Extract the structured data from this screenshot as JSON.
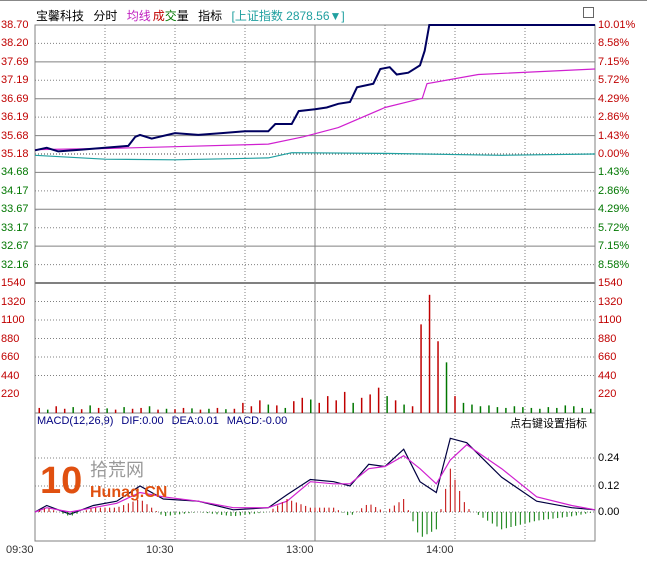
{
  "header": {
    "stock_name": "宝馨科技",
    "tab_fenshi": "分时",
    "tab_junxian": "均线",
    "tab_cheng": "成",
    "tab_jiao": "交",
    "tab_liang": "量",
    "tab_zhibiao": "指标",
    "index_info": "[上证指数 2878.56▼]"
  },
  "colors": {
    "price": "#000060",
    "avg": "#d020d0",
    "index": "#20a0a0",
    "up": "#c00000",
    "down": "#007700",
    "grid": "#808080"
  },
  "price_axis": {
    "left": [
      "38.70",
      "38.20",
      "37.69",
      "37.19",
      "36.69",
      "36.19",
      "35.68",
      "35.18",
      "34.68",
      "34.17",
      "33.67",
      "33.17",
      "32.67",
      "32.16"
    ],
    "right": [
      "10.01%",
      "8.58%",
      "7.15%",
      "5.72%",
      "4.29%",
      "2.86%",
      "1.43%",
      "0.00%",
      "1.43%",
      "2.86%",
      "4.29%",
      "5.72%",
      "7.15%",
      "8.58%"
    ],
    "prev_close": 35.18
  },
  "volume_axis": {
    "left": [
      "1540",
      "1320",
      "1100",
      "880",
      "660",
      "440",
      "220"
    ],
    "right": [
      "1540",
      "1320",
      "1100",
      "880",
      "660",
      "440",
      "220"
    ]
  },
  "macd": {
    "label": "MACD(12,26,9)",
    "dif": "DIF:0.00",
    "dea": "DEA:0.01",
    "macd": "MACD:-0.00",
    "hint": "点右键设置指标",
    "axis": [
      "0.24",
      "0.12",
      "0.00"
    ]
  },
  "time_axis": [
    "09:30",
    "10:30",
    "13:00",
    "14:00"
  ],
  "watermark": {
    "text1": "拾荒网",
    "text2": "Hunag.CN",
    "num": "10"
  },
  "chart_data": {
    "type": "line",
    "price": [
      [
        0,
        35.28
      ],
      [
        5,
        35.35
      ],
      [
        10,
        35.25
      ],
      [
        20,
        35.3
      ],
      [
        30,
        35.35
      ],
      [
        40,
        35.4
      ],
      [
        43,
        35.65
      ],
      [
        45,
        35.7
      ],
      [
        50,
        35.6
      ],
      [
        60,
        35.75
      ],
      [
        70,
        35.7
      ],
      [
        80,
        35.75
      ],
      [
        90,
        35.8
      ],
      [
        100,
        35.8
      ],
      [
        103,
        36.0
      ],
      [
        110,
        36.0
      ],
      [
        113,
        36.35
      ],
      [
        120,
        36.4
      ],
      [
        125,
        36.45
      ],
      [
        130,
        36.55
      ],
      [
        135,
        36.6
      ],
      [
        138,
        37.0
      ],
      [
        145,
        37.1
      ],
      [
        148,
        37.5
      ],
      [
        152,
        37.55
      ],
      [
        155,
        37.35
      ],
      [
        160,
        37.4
      ],
      [
        165,
        37.6
      ],
      [
        167,
        38.0
      ],
      [
        169,
        38.7
      ],
      [
        240,
        38.7
      ]
    ],
    "avg": [
      [
        0,
        35.3
      ],
      [
        30,
        35.33
      ],
      [
        60,
        35.38
      ],
      [
        100,
        35.45
      ],
      [
        115,
        35.65
      ],
      [
        130,
        35.9
      ],
      [
        150,
        36.45
      ],
      [
        166,
        36.7
      ],
      [
        168,
        37.1
      ],
      [
        190,
        37.35
      ],
      [
        240,
        37.5
      ]
    ],
    "index_pct": [
      [
        0,
        -0.1
      ],
      [
        30,
        -0.4
      ],
      [
        60,
        -0.45
      ],
      [
        100,
        -0.3
      ],
      [
        110,
        0.1
      ],
      [
        150,
        0.05
      ],
      [
        200,
        -0.1
      ],
      [
        240,
        0.0
      ]
    ],
    "volume": [
      60,
      40,
      80,
      50,
      70,
      45,
      90,
      60,
      55,
      40,
      70,
      50,
      60,
      80,
      40,
      50,
      45,
      60,
      55,
      40,
      50,
      60,
      45,
      50,
      120,
      80,
      150,
      100,
      90,
      60,
      140,
      180,
      160,
      120,
      200,
      150,
      250,
      120,
      180,
      220,
      300,
      200,
      150,
      100,
      80,
      1050,
      1400,
      850,
      600,
      200,
      120,
      100,
      80,
      90,
      70,
      60,
      80,
      70,
      60,
      50,
      70,
      60,
      90,
      80,
      60,
      50
    ],
    "volume_up": [
      1,
      0,
      1,
      1,
      0,
      1,
      0,
      1,
      0,
      1,
      0,
      1,
      1,
      0,
      1,
      0,
      1,
      1,
      0,
      1,
      0,
      1,
      0,
      1,
      1,
      1,
      1,
      0,
      1,
      0,
      1,
      1,
      0,
      1,
      1,
      1,
      1,
      0,
      1,
      1,
      1,
      0,
      1,
      0,
      1,
      1,
      1,
      1,
      0,
      1,
      0,
      0,
      0,
      0,
      0,
      0,
      0,
      0,
      0,
      0,
      0,
      0,
      0,
      0,
      0,
      0
    ],
    "dif": [
      [
        0,
        0.0
      ],
      [
        5,
        0.03
      ],
      [
        15,
        -0.01
      ],
      [
        25,
        0.03
      ],
      [
        35,
        0.05
      ],
      [
        45,
        0.12
      ],
      [
        55,
        0.06
      ],
      [
        70,
        0.05
      ],
      [
        85,
        0.01
      ],
      [
        100,
        0.02
      ],
      [
        108,
        0.08
      ],
      [
        118,
        0.15
      ],
      [
        128,
        0.14
      ],
      [
        135,
        0.12
      ],
      [
        143,
        0.22
      ],
      [
        150,
        0.21
      ],
      [
        158,
        0.29
      ],
      [
        165,
        0.14
      ],
      [
        172,
        0.09
      ],
      [
        178,
        0.34
      ],
      [
        185,
        0.32
      ],
      [
        200,
        0.16
      ],
      [
        215,
        0.05
      ],
      [
        230,
        0.02
      ],
      [
        240,
        0.01
      ]
    ],
    "dea": [
      [
        0,
        0.0
      ],
      [
        5,
        0.02
      ],
      [
        15,
        0.0
      ],
      [
        25,
        0.02
      ],
      [
        35,
        0.04
      ],
      [
        45,
        0.09
      ],
      [
        55,
        0.07
      ],
      [
        70,
        0.05
      ],
      [
        85,
        0.02
      ],
      [
        100,
        0.02
      ],
      [
        108,
        0.05
      ],
      [
        118,
        0.14
      ],
      [
        128,
        0.13
      ],
      [
        135,
        0.13
      ],
      [
        143,
        0.2
      ],
      [
        150,
        0.21
      ],
      [
        158,
        0.26
      ],
      [
        165,
        0.2
      ],
      [
        172,
        0.13
      ],
      [
        178,
        0.24
      ],
      [
        185,
        0.31
      ],
      [
        200,
        0.2
      ],
      [
        215,
        0.07
      ],
      [
        230,
        0.03
      ],
      [
        240,
        0.01
      ]
    ],
    "macd_range": [
      -0.12,
      0.36
    ]
  }
}
